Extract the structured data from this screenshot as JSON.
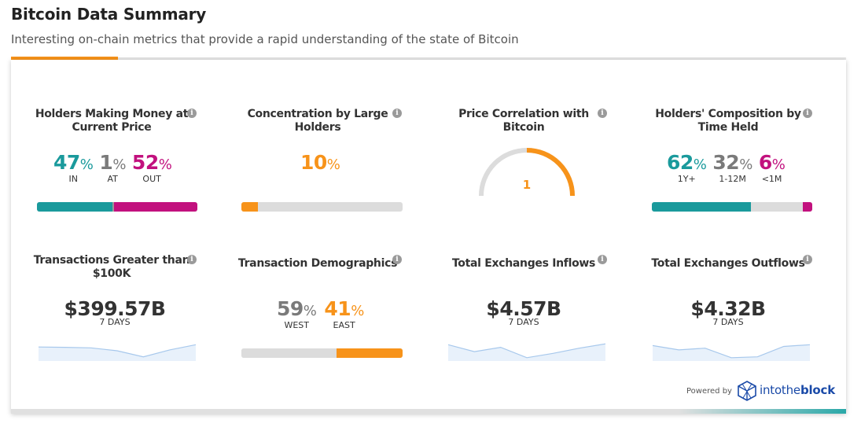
{
  "header": {
    "title": "Bitcoin Data Summary",
    "subtitle": "Interesting on-chain metrics that provide a rapid understanding of the state of Bitcoin"
  },
  "colors": {
    "teal": "#1a9a9c",
    "magenta": "#c2117e",
    "orange": "#f7931a",
    "gray": "#7a7a7a",
    "track": "#dcdcdc",
    "spark_line": "#a7c8ec",
    "spark_fill": "#e8f1fb"
  },
  "widgets": {
    "holders_money": {
      "title": "Holders Making Money at Current Price",
      "in_value": "47",
      "in_label": "IN",
      "at_value": "1",
      "at_label": "AT",
      "out_value": "52",
      "out_label": "OUT",
      "pct": "%",
      "bar": [
        0.47,
        0.01,
        0.52
      ]
    },
    "concentration": {
      "title": "Concentration by Large Holders",
      "value": "10",
      "pct": "%",
      "bar_fraction": 0.1
    },
    "price_correlation": {
      "title": "Price Correlation with Bitcoin",
      "value": "1",
      "gauge_fraction": 1.0
    },
    "holders_composition": {
      "title": "Holders' Composition by Time Held",
      "v1": "62",
      "l1": "1Y+",
      "v2": "32",
      "l2": "1-12M",
      "v3": "6",
      "l3": "<1M",
      "pct": "%",
      "bar": [
        0.62,
        0.32,
        0.06
      ]
    },
    "large_tx": {
      "title": "Transactions Greater than $100K",
      "value": "$399.57B",
      "sub": "7 DAYS",
      "spark": [
        0.72,
        0.7,
        0.67,
        0.5,
        0.15,
        0.55,
        0.85
      ]
    },
    "tx_demographics": {
      "title": "Transaction Demographics",
      "west_value": "59",
      "west_label": "WEST",
      "east_value": "41",
      "east_label": "EAST",
      "pct": "%",
      "bar": [
        0.59,
        0.41
      ]
    },
    "inflows": {
      "title": "Total Exchanges Inflows",
      "value": "$4.57B",
      "sub": "7 DAYS",
      "spark": [
        0.85,
        0.45,
        0.7,
        0.1,
        0.35,
        0.65,
        0.9
      ]
    },
    "outflows": {
      "title": "Total Exchanges Outflows",
      "value": "$4.32B",
      "sub": "7 DAYS",
      "spark": [
        0.8,
        0.55,
        0.65,
        0.1,
        0.15,
        0.75,
        0.85
      ]
    }
  },
  "footer": {
    "powered_by": "Powered by",
    "brand_part1": "intothe",
    "brand_part2": "block",
    "info_glyph": "i"
  }
}
